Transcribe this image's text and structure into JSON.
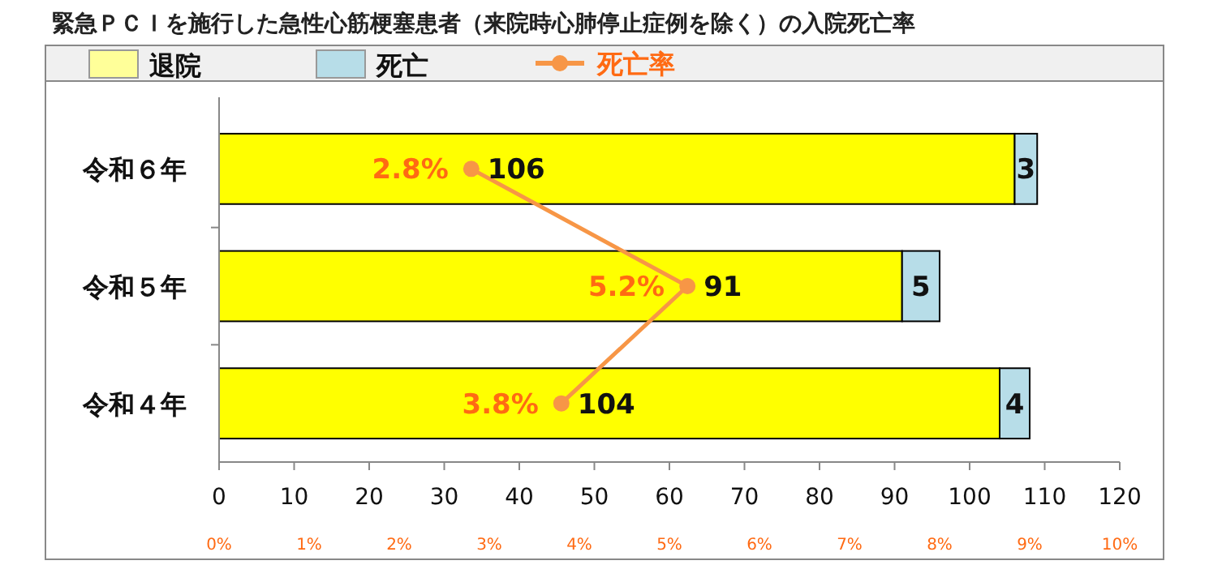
{
  "chart_data": {
    "type": "bar",
    "orientation": "horizontal",
    "stacked": true,
    "title": "緊急ＰＣＩを施行した急性心筋梗塞患者（来院時心肺停止症例を除く）の入院死亡率",
    "categories": [
      "令和６年",
      "令和５年",
      "令和４年"
    ],
    "series": [
      {
        "name": "退院",
        "color": "#ffff00",
        "values": [
          106,
          91,
          104
        ]
      },
      {
        "name": "死亡",
        "color": "#b7dde8",
        "values": [
          3,
          5,
          4
        ]
      },
      {
        "name": "死亡率",
        "type": "line",
        "axis": "x2",
        "color": "#f79646",
        "values": [
          2.8,
          5.2,
          3.8
        ],
        "value_labels": [
          "2.8%",
          "5.2%",
          "3.8%"
        ]
      }
    ],
    "data_labels": true,
    "xlim": [
      0,
      120
    ],
    "xticks": [
      0,
      10,
      20,
      30,
      40,
      50,
      60,
      70,
      80,
      90,
      100,
      110,
      120
    ],
    "x2lim": [
      0,
      10
    ],
    "x2ticks": [
      {
        "value": 0,
        "label": "0%"
      },
      {
        "value": 1,
        "label": "1%"
      },
      {
        "value": 2,
        "label": "2%"
      },
      {
        "value": 3,
        "label": "3%"
      },
      {
        "value": 4,
        "label": "4%"
      },
      {
        "value": 5,
        "label": "5%"
      },
      {
        "value": 6,
        "label": "6%"
      },
      {
        "value": 7,
        "label": "7%"
      },
      {
        "value": 8,
        "label": "8%"
      },
      {
        "value": 9,
        "label": "9%"
      },
      {
        "value": 10,
        "label": "10%"
      }
    ],
    "marker": "circle",
    "legend": "top",
    "grid": false
  }
}
